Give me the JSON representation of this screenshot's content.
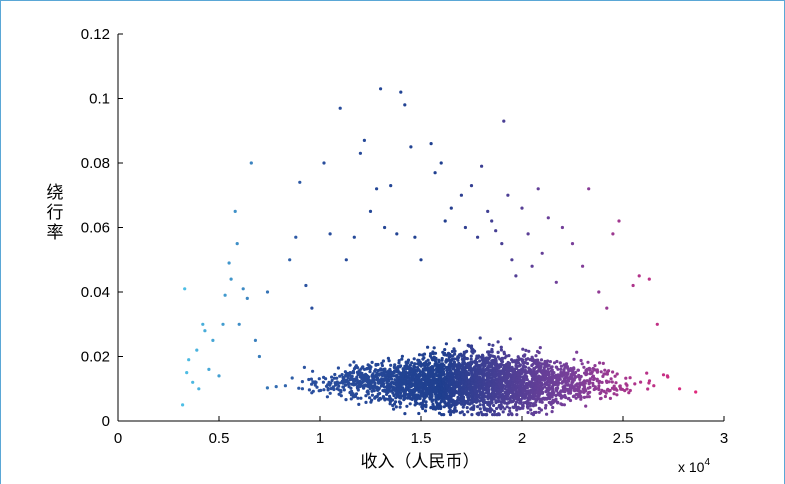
{
  "chart_data": {
    "type": "scatter",
    "title": "",
    "xlabel": "收入（人民币）",
    "ylabel": "绕行率",
    "xlim": [
      0,
      3
    ],
    "ylim": [
      0,
      0.12
    ],
    "x_multiplier_text": "x 10",
    "x_multiplier_exp": "4",
    "x_ticks": [
      "0",
      "0.5",
      "1",
      "1.5",
      "2",
      "2.5",
      "3"
    ],
    "x_tick_values": [
      0,
      0.5,
      1,
      1.5,
      2,
      2.5,
      3
    ],
    "y_ticks": [
      "0",
      "0.02",
      "0.04",
      "0.06",
      "0.08",
      "0.1",
      "0.12"
    ],
    "y_tick_values": [
      0,
      0.02,
      0.04,
      0.06,
      0.08,
      0.1,
      0.12
    ],
    "grid": false,
    "color_gradient": [
      "#4fc3e8",
      "#2a4f9e",
      "#1f3f8f",
      "#7a3f9a",
      "#e8287a"
    ],
    "series": [
      {
        "values": [
          [
            0.32,
            0.005
          ],
          [
            0.33,
            0.041
          ],
          [
            0.34,
            0.015
          ],
          [
            0.35,
            0.019
          ],
          [
            0.37,
            0.012
          ],
          [
            0.39,
            0.022
          ],
          [
            0.4,
            0.01
          ],
          [
            0.42,
            0.03
          ],
          [
            0.43,
            0.028
          ],
          [
            0.45,
            0.016
          ],
          [
            0.47,
            0.025
          ],
          [
            0.5,
            0.014
          ],
          [
            0.52,
            0.03
          ],
          [
            0.53,
            0.039
          ],
          [
            0.55,
            0.049
          ],
          [
            0.56,
            0.044
          ],
          [
            0.58,
            0.065
          ],
          [
            0.59,
            0.055
          ],
          [
            0.6,
            0.03
          ],
          [
            0.62,
            0.041
          ],
          [
            0.64,
            0.038
          ],
          [
            0.66,
            0.08
          ],
          [
            0.68,
            0.025
          ],
          [
            0.7,
            0.02
          ],
          [
            0.74,
            0.04
          ],
          [
            0.85,
            0.05
          ],
          [
            0.88,
            0.057
          ],
          [
            0.9,
            0.074
          ],
          [
            0.93,
            0.042
          ],
          [
            0.96,
            0.035
          ],
          [
            1.02,
            0.08
          ],
          [
            1.05,
            0.058
          ],
          [
            1.1,
            0.097
          ],
          [
            1.13,
            0.05
          ],
          [
            1.17,
            0.057
          ],
          [
            1.2,
            0.083
          ],
          [
            1.22,
            0.087
          ],
          [
            1.25,
            0.065
          ],
          [
            1.28,
            0.072
          ],
          [
            1.3,
            0.103
          ],
          [
            1.32,
            0.06
          ],
          [
            1.35,
            0.073
          ],
          [
            1.38,
            0.058
          ],
          [
            1.4,
            0.102
          ],
          [
            1.42,
            0.098
          ],
          [
            1.45,
            0.085
          ],
          [
            1.47,
            0.057
          ],
          [
            1.5,
            0.05
          ],
          [
            1.55,
            0.086
          ],
          [
            1.57,
            0.077
          ],
          [
            1.6,
            0.08
          ],
          [
            1.62,
            0.062
          ],
          [
            1.65,
            0.066
          ],
          [
            1.7,
            0.07
          ],
          [
            1.72,
            0.06
          ],
          [
            1.75,
            0.073
          ],
          [
            1.78,
            0.057
          ],
          [
            1.8,
            0.079
          ],
          [
            1.83,
            0.065
          ],
          [
            1.85,
            0.062
          ],
          [
            1.87,
            0.059
          ],
          [
            1.9,
            0.055
          ],
          [
            1.91,
            0.093
          ],
          [
            1.93,
            0.07
          ],
          [
            1.95,
            0.05
          ],
          [
            1.97,
            0.045
          ],
          [
            2.0,
            0.066
          ],
          [
            2.03,
            0.058
          ],
          [
            2.05,
            0.048
          ],
          [
            2.08,
            0.072
          ],
          [
            2.1,
            0.052
          ],
          [
            2.13,
            0.063
          ],
          [
            2.17,
            0.043
          ],
          [
            2.2,
            0.06
          ],
          [
            2.25,
            0.055
          ],
          [
            2.3,
            0.048
          ],
          [
            2.33,
            0.072
          ],
          [
            2.38,
            0.04
          ],
          [
            2.42,
            0.035
          ],
          [
            2.45,
            0.058
          ],
          [
            2.48,
            0.062
          ],
          [
            2.55,
            0.042
          ],
          [
            2.58,
            0.045
          ],
          [
            2.63,
            0.044
          ],
          [
            2.67,
            0.03
          ],
          [
            2.72,
            0.014
          ],
          [
            2.78,
            0.01
          ],
          [
            2.86,
            0.009
          ]
        ],
        "dense_band": {
          "x_range": [
            0.3,
            2.9
          ],
          "y_range": [
            0.002,
            0.035
          ],
          "approx_count": 3500
        }
      }
    ]
  }
}
